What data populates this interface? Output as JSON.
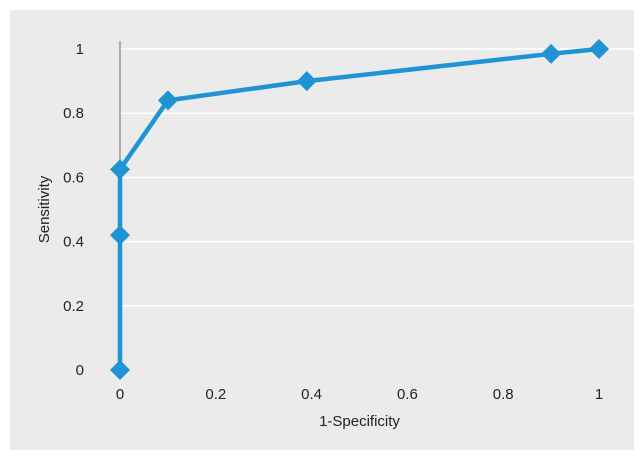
{
  "colors": {
    "panel_background": "#ebebeb",
    "gridline": "#ffffff",
    "y_axis_line": "#9a9a9a",
    "series": "#1f93d3",
    "text": "#222222"
  },
  "chart_data": {
    "type": "line",
    "title": "",
    "xlabel": "1-Specificity",
    "ylabel": "Sensitivity",
    "xlim": [
      0,
      1
    ],
    "ylim": [
      0,
      1
    ],
    "grid": true,
    "legend": "none",
    "x_ticks": [
      {
        "value": 0,
        "label": "0"
      },
      {
        "value": 0.2,
        "label": "0.2"
      },
      {
        "value": 0.4,
        "label": "0.4"
      },
      {
        "value": 0.6,
        "label": "0.6"
      },
      {
        "value": 0.8,
        "label": "0.8"
      },
      {
        "value": 1,
        "label": "1"
      }
    ],
    "y_ticks": [
      {
        "value": 0,
        "label": "0"
      },
      {
        "value": 0.2,
        "label": "0.2"
      },
      {
        "value": 0.4,
        "label": "0.4"
      },
      {
        "value": 0.6,
        "label": "0.6"
      },
      {
        "value": 0.8,
        "label": "0.8"
      },
      {
        "value": 1,
        "label": "1"
      }
    ],
    "series": [
      {
        "marker": "diamond",
        "color": "#1f93d3",
        "points": [
          {
            "x": 0,
            "y": 0
          },
          {
            "x": 0,
            "y": 0.42
          },
          {
            "x": 0,
            "y": 0.625
          },
          {
            "x": 0.1,
            "y": 0.84
          },
          {
            "x": 0.39,
            "y": 0.9
          },
          {
            "x": 0.9,
            "y": 0.985
          },
          {
            "x": 1,
            "y": 1
          }
        ]
      }
    ]
  }
}
